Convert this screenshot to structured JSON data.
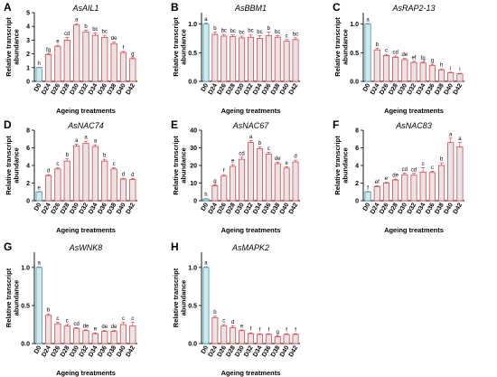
{
  "chart_data": [
    {
      "type": "bar",
      "panel": "A",
      "title": "AsAIL1",
      "xlabel": "Ageing treatments",
      "ylabel": "Relative transcript abundance",
      "ylim": [
        0,
        5
      ],
      "yticks": [
        0,
        1,
        2,
        3,
        4,
        5
      ],
      "categories": [
        "D0",
        "D24",
        "D26",
        "D28",
        "D30",
        "D32",
        "D34",
        "D36",
        "D38",
        "D40",
        "D42"
      ],
      "values": [
        1.0,
        1.95,
        2.55,
        3.0,
        4.1,
        3.6,
        3.35,
        3.2,
        2.75,
        2.1,
        1.65
      ],
      "errors": [
        0.02,
        0.06,
        0.08,
        0.2,
        0.1,
        0.12,
        0.18,
        0.15,
        0.1,
        0.08,
        0.07
      ],
      "letters": [
        "h",
        "fg",
        "e",
        "cd",
        "a",
        "b",
        "bc",
        "bc",
        "de",
        "f",
        "g"
      ]
    },
    {
      "type": "bar",
      "panel": "B",
      "title": "AsBBM1",
      "xlabel": "Ageing treatments",
      "ylabel": "Relative transcript abundance",
      "ylim": [
        0,
        1.2
      ],
      "yticks": [
        0,
        0.5,
        1.0
      ],
      "categories": [
        "D0",
        "D24",
        "D26",
        "D28",
        "D30",
        "D32",
        "D34",
        "D36",
        "D38",
        "D40",
        "D42"
      ],
      "values": [
        1.0,
        0.82,
        0.79,
        0.78,
        0.76,
        0.77,
        0.75,
        0.8,
        0.77,
        0.7,
        0.73
      ],
      "errors": [
        0.02,
        0.04,
        0.03,
        0.03,
        0.03,
        0.05,
        0.05,
        0.06,
        0.03,
        0.03,
        0.03
      ],
      "letters": [
        "a",
        "b",
        "bc",
        "bc",
        "bc",
        "bc",
        "bc",
        "b",
        "bc",
        "c",
        "bc"
      ]
    },
    {
      "type": "bar",
      "panel": "C",
      "title": "AsRAP2-13",
      "xlabel": "Ageing treatments",
      "ylabel": "Relative transcript abundance",
      "ylim": [
        0,
        1.2
      ],
      "yticks": [
        0,
        0.5,
        1.0
      ],
      "categories": [
        "D0",
        "D24",
        "D26",
        "D28",
        "D30",
        "D32",
        "D34",
        "D36",
        "D38",
        "D40",
        "D42"
      ],
      "values": [
        1.0,
        0.55,
        0.45,
        0.42,
        0.38,
        0.33,
        0.32,
        0.28,
        0.2,
        0.15,
        0.13
      ],
      "errors": [
        0.01,
        0.03,
        0.02,
        0.02,
        0.02,
        0.02,
        0.02,
        0.02,
        0.02,
        0.01,
        0.01
      ],
      "letters": [
        "a",
        "b",
        "c",
        "cd",
        "de",
        "ef",
        "fg",
        "g",
        "h",
        "i",
        "i"
      ]
    },
    {
      "type": "bar",
      "panel": "D",
      "title": "AsNAC74",
      "xlabel": "Ageing treatments",
      "ylabel": "Relative transcript abundance",
      "ylim": [
        0,
        8
      ],
      "yticks": [
        0,
        2,
        4,
        6,
        8
      ],
      "categories": [
        "D0",
        "D24",
        "D26",
        "D28",
        "D30",
        "D32",
        "D34",
        "D36",
        "D38",
        "D40",
        "D42"
      ],
      "values": [
        1.0,
        2.85,
        3.6,
        4.5,
        6.2,
        6.5,
        6.15,
        4.5,
        3.6,
        2.45,
        2.4
      ],
      "errors": [
        0.05,
        0.1,
        0.15,
        0.25,
        0.2,
        0.25,
        0.2,
        0.2,
        0.15,
        0.1,
        0.1
      ],
      "letters": [
        "e",
        "d",
        "c",
        "b",
        "a",
        "a",
        "a",
        "b",
        "c",
        "d",
        "d"
      ]
    },
    {
      "type": "bar",
      "panel": "E",
      "title": "AsNAC67",
      "xlabel": "Ageing treatments",
      "ylabel": "Relative transcript abundance",
      "ylim": [
        0,
        40
      ],
      "yticks": [
        0,
        10,
        20,
        30,
        40
      ],
      "categories": [
        "D0",
        "D24",
        "D26",
        "D28",
        "D30",
        "D32",
        "D34",
        "D36",
        "D38",
        "D40",
        "D42"
      ],
      "values": [
        1.0,
        8.5,
        14.0,
        19.5,
        23.5,
        33.0,
        29.5,
        26.5,
        21.0,
        18.5,
        22.0
      ],
      "errors": [
        0.2,
        0.5,
        0.8,
        1.0,
        1.2,
        1.2,
        1.0,
        1.0,
        0.8,
        0.8,
        1.0
      ],
      "letters": [
        "h",
        "g",
        "f",
        "e",
        "cd",
        "a",
        "b",
        "c",
        "de",
        "e",
        "d"
      ]
    },
    {
      "type": "bar",
      "panel": "F",
      "title": "AsNAC83",
      "xlabel": "Ageing treatments",
      "ylabel": "Relative transcript abundance",
      "ylim": [
        0,
        8
      ],
      "yticks": [
        0,
        2,
        4,
        6,
        8
      ],
      "categories": [
        "D0",
        "D24",
        "D26",
        "D28",
        "D30",
        "D32",
        "D34",
        "D36",
        "D38",
        "D40",
        "D42"
      ],
      "values": [
        1.0,
        1.6,
        2.0,
        2.35,
        2.95,
        2.9,
        3.25,
        3.2,
        4.0,
        6.6,
        6.1
      ],
      "errors": [
        0.05,
        0.1,
        0.1,
        0.1,
        0.2,
        0.2,
        0.5,
        0.15,
        0.3,
        0.5,
        0.5
      ],
      "letters": [
        "f",
        "ef",
        "e",
        "de",
        "cd",
        "cd",
        "c",
        "c",
        "b",
        "a",
        "a"
      ]
    },
    {
      "type": "bar",
      "panel": "G",
      "title": "AsWNK8",
      "xlabel": "Ageing treatments",
      "ylabel": "Relative transcript abundance",
      "ylim": [
        0,
        1.2
      ],
      "yticks": [
        0,
        0.5,
        1.0
      ],
      "categories": [
        "D0",
        "D24",
        "D26",
        "D28",
        "D30",
        "D32",
        "D34",
        "D36",
        "D38",
        "D40",
        "D42"
      ],
      "values": [
        1.0,
        0.37,
        0.26,
        0.23,
        0.2,
        0.17,
        0.13,
        0.16,
        0.16,
        0.25,
        0.23
      ],
      "errors": [
        0.01,
        0.02,
        0.02,
        0.02,
        0.01,
        0.01,
        0.01,
        0.01,
        0.01,
        0.03,
        0.05
      ],
      "letters": [
        "a",
        "b",
        "c",
        "c",
        "cd",
        "de",
        "e",
        "de",
        "de",
        "c",
        "c"
      ]
    },
    {
      "type": "bar",
      "panel": "H",
      "title": "AsMAPK2",
      "xlabel": "Ageing treatments",
      "ylabel": "Relative transcript abundance",
      "ylim": [
        0,
        1.2
      ],
      "yticks": [
        0,
        0.5,
        1.0
      ],
      "categories": [
        "D0",
        "D24",
        "D26",
        "D28",
        "D30",
        "D32",
        "D34",
        "D36",
        "D38",
        "D40",
        "D42"
      ],
      "values": [
        1.0,
        0.34,
        0.23,
        0.21,
        0.17,
        0.13,
        0.12,
        0.12,
        0.09,
        0.12,
        0.12
      ],
      "errors": [
        0.01,
        0.02,
        0.02,
        0.02,
        0.01,
        0.01,
        0.01,
        0.01,
        0.01,
        0.01,
        0.01
      ],
      "letters": [
        "a",
        "b",
        "c",
        "d",
        "e",
        "f",
        "f",
        "f",
        "g",
        "f",
        "f"
      ]
    }
  ],
  "colors": {
    "control_bar": "#cfe9ef",
    "control_edge": "#3a9aa8",
    "treatment_bar": "#e6e6e6",
    "treatment_edge": "#e0424a",
    "axis": "#000000"
  }
}
